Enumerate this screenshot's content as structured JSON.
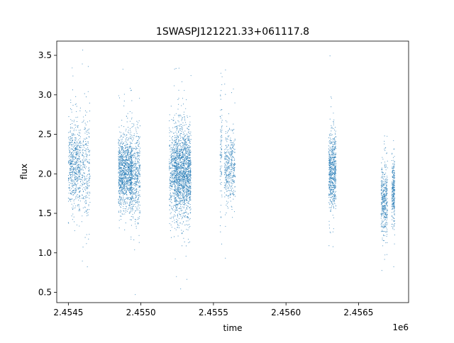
{
  "chart_data": {
    "type": "scatter",
    "title": "1SWASPJ121221.33+061117.8",
    "xlabel": "time",
    "ylabel": "flux",
    "x_offset_label": "1e6",
    "xlim": [
      2454420,
      2456845
    ],
    "ylim": [
      0.37,
      3.68
    ],
    "x_ticks": [
      2454500,
      2455000,
      2455500,
      2456000,
      2456500
    ],
    "x_tick_labels": [
      "2.4545",
      "2.4550",
      "2.4555",
      "2.4560",
      "2.4565"
    ],
    "y_ticks": [
      0.5,
      1.0,
      1.5,
      2.0,
      2.5,
      3.0,
      3.5
    ],
    "y_tick_labels": [
      "0.5",
      "1.0",
      "1.5",
      "2.0",
      "2.5",
      "3.0",
      "3.5"
    ],
    "marker_color": "#1f77b4",
    "grid": false,
    "point_groups": [
      {
        "x_range": [
          2454500,
          2454585
        ],
        "mean": 2.12,
        "sd": 0.27,
        "n": 620
      },
      {
        "x_range": [
          2454590,
          2454650
        ],
        "mean": 2.05,
        "sd": 0.32,
        "n": 260
      },
      {
        "x_range": [
          2454845,
          2454940
        ],
        "mean": 2.02,
        "sd": 0.24,
        "n": 1100
      },
      {
        "x_range": [
          2454925,
          2454995
        ],
        "mean": 1.98,
        "sd": 0.3,
        "n": 520
      },
      {
        "x_range": [
          2455195,
          2455230
        ],
        "mean": 2.02,
        "sd": 0.32,
        "n": 260
      },
      {
        "x_range": [
          2455230,
          2455345
        ],
        "mean": 2.02,
        "sd": 0.29,
        "n": 1700
      },
      {
        "x_range": [
          2455545,
          2455560
        ],
        "mean": 2.28,
        "sd": 0.38,
        "n": 90
      },
      {
        "x_range": [
          2455575,
          2455650
        ],
        "mean": 2.1,
        "sd": 0.24,
        "n": 420
      },
      {
        "x_range": [
          2456295,
          2456345
        ],
        "mean": 2.04,
        "sd": 0.24,
        "n": 640
      },
      {
        "x_range": [
          2456655,
          2456700
        ],
        "mean": 1.68,
        "sd": 0.23,
        "n": 420
      },
      {
        "x_range": [
          2456730,
          2456750
        ],
        "mean": 1.8,
        "sd": 0.2,
        "n": 280
      }
    ]
  }
}
